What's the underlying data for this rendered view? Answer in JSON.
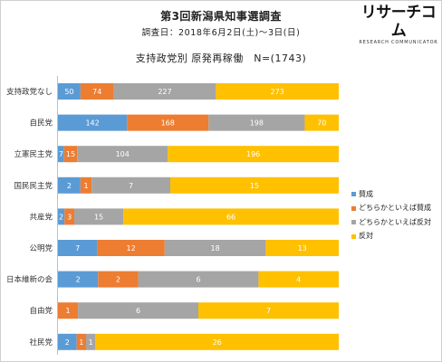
{
  "header": {
    "title": "第3回新潟県知事選調査",
    "survey_date": "調査日：2018年6月2日(土)〜3日(日)",
    "logo_main": "リサーチコム",
    "logo_sub": "RESEARCH COMMUNICATOR"
  },
  "colors": {
    "sansei": "#5b9bd5",
    "dochiraka_sansei": "#ed7d31",
    "dochiraka_hantai": "#a5a5a5",
    "hantai": "#ffc000"
  },
  "chart_data": {
    "type": "bar",
    "orientation": "horizontal",
    "stacked": true,
    "normalized": true,
    "title": "支持政党別 原発再稼働　N=(1743)",
    "categories": [
      "支持政党なし",
      "自民党",
      "立憲民主党",
      "国民民主党",
      "共産党",
      "公明党",
      "日本維新の会",
      "自由党",
      "社民党"
    ],
    "series": [
      {
        "name": "賛成",
        "color": "#5b9bd5",
        "values": [
          50,
          142,
          7,
          2,
          2,
          7,
          2,
          0,
          2
        ]
      },
      {
        "name": "どちらかといえば賛成",
        "color": "#ed7d31",
        "values": [
          74,
          168,
          15,
          1,
          3,
          12,
          2,
          1,
          1
        ]
      },
      {
        "name": "どちらかといえば反対",
        "color": "#a5a5a5",
        "values": [
          227,
          198,
          104,
          7,
          15,
          18,
          6,
          6,
          1
        ]
      },
      {
        "name": "反対",
        "color": "#ffc000",
        "values": [
          273,
          70,
          196,
          15,
          66,
          13,
          4,
          7,
          26
        ]
      }
    ],
    "legend_position": "right",
    "grid": false
  }
}
